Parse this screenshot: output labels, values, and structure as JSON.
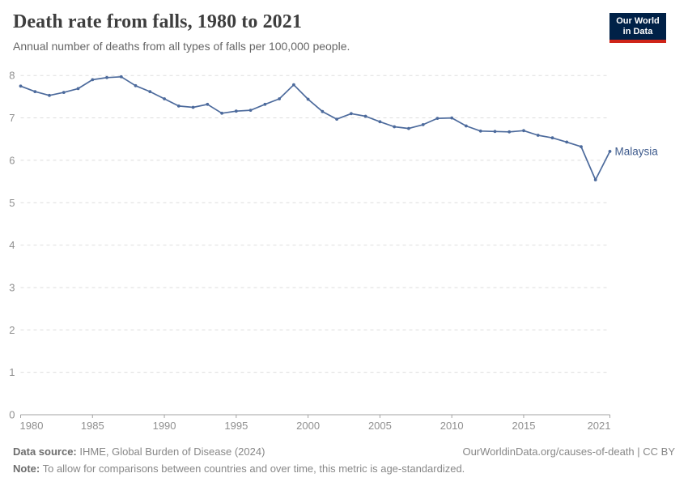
{
  "header": {
    "title": "Death rate from falls, 1980 to 2021",
    "subtitle": "Annual number of deaths from all types of falls per 100,000 people."
  },
  "logo": {
    "line1": "Our World",
    "line2": "in Data"
  },
  "footer": {
    "source_label": "Data source:",
    "source_text": " IHME, Global Burden of Disease (2024)",
    "link_text": "OurWorldinData.org/causes-of-death | CC BY",
    "note_label": "Note:",
    "note_text": " To allow for comparisons between countries and over time, this metric is age-standardized."
  },
  "colors": {
    "line": "#4c6a9c",
    "entity_label": "#3d5a8c",
    "grid": "#dedede",
    "axis": "#a3a3a3",
    "tick_label": "#909090",
    "logo_bg": "#002147",
    "logo_bar": "#cf2418"
  },
  "chart_data": {
    "type": "line",
    "title": "Death rate from falls, 1980 to 2021",
    "xlabel": "",
    "ylabel": "",
    "xlim": [
      1980,
      2021
    ],
    "ylim": [
      0,
      8
    ],
    "grid": "horizontal-dashed",
    "legend_position": "end-of-line-label",
    "xticks": [
      1980,
      1985,
      1990,
      1995,
      2000,
      2005,
      2010,
      2015,
      2021
    ],
    "yticks": [
      0,
      1,
      2,
      3,
      4,
      5,
      6,
      7,
      8
    ],
    "series": [
      {
        "name": "Malaysia",
        "x": [
          1980,
          1981,
          1982,
          1983,
          1984,
          1985,
          1986,
          1987,
          1988,
          1989,
          1990,
          1991,
          1992,
          1993,
          1994,
          1995,
          1996,
          1997,
          1998,
          1999,
          2000,
          2001,
          2002,
          2003,
          2004,
          2005,
          2006,
          2007,
          2008,
          2009,
          2010,
          2011,
          2012,
          2013,
          2014,
          2015,
          2016,
          2017,
          2018,
          2019,
          2020,
          2021
        ],
        "values": [
          7.75,
          7.62,
          7.53,
          7.6,
          7.69,
          7.9,
          7.95,
          7.97,
          7.76,
          7.62,
          7.45,
          7.28,
          7.25,
          7.32,
          7.11,
          7.16,
          7.18,
          7.32,
          7.45,
          7.78,
          7.44,
          7.15,
          6.97,
          7.1,
          7.04,
          6.91,
          6.79,
          6.75,
          6.84,
          6.99,
          7.0,
          6.81,
          6.69,
          6.68,
          6.67,
          6.7,
          6.59,
          6.53,
          6.43,
          6.32,
          5.54,
          6.21
        ]
      }
    ]
  }
}
